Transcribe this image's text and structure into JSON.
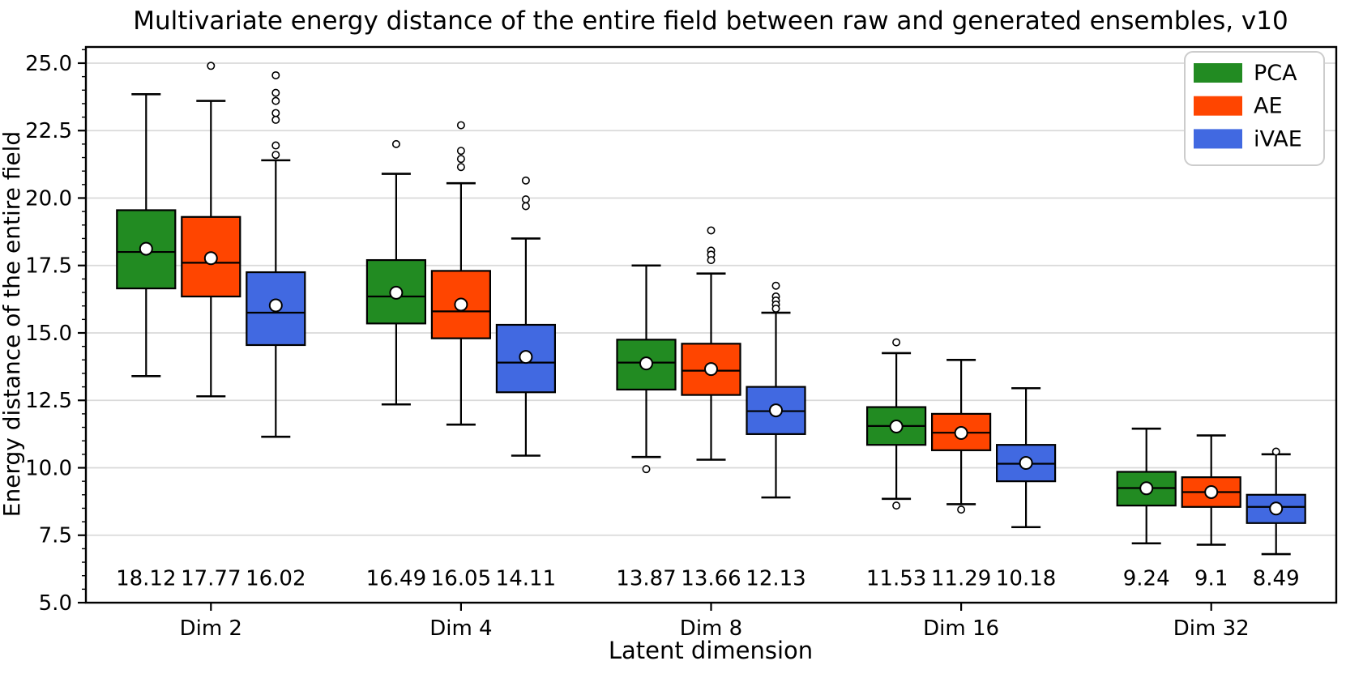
{
  "chart_data": {
    "type": "boxplot",
    "title": "Multivariate energy distance of the entire field between raw and generated ensembles, v10",
    "xlabel": "Latent dimension",
    "ylabel": "Energy distance of the entire field",
    "categories": [
      "Dim 2",
      "Dim 4",
      "Dim 8",
      "Dim 16",
      "Dim 32"
    ],
    "ylim": [
      5.0,
      25.6
    ],
    "yticks": [
      "5.0",
      "7.5",
      "10.0",
      "12.5",
      "15.0",
      "17.5",
      "20.0",
      "22.5",
      "25.0"
    ],
    "minor_tick_step": 0.5,
    "grid": "horizontal major gridlines, light gray",
    "legend": {
      "position": "upper right",
      "entries": [
        {
          "label": "PCA",
          "color": "#228B22"
        },
        {
          "label": "AE",
          "color": "#FF4500"
        },
        {
          "label": "iVAE",
          "color": "#4169E1"
        }
      ]
    },
    "mean_marker": "white circle with black edge",
    "series": [
      {
        "name": "PCA",
        "color": "#228B22",
        "boxes": [
          {
            "category": "Dim 2",
            "whislo": 13.4,
            "q1": 16.65,
            "med": 18.0,
            "q3": 19.55,
            "whishi": 23.85,
            "mean": 18.12,
            "mean_label": "18.12",
            "fliers": []
          },
          {
            "category": "Dim 4",
            "whislo": 12.35,
            "q1": 15.35,
            "med": 16.35,
            "q3": 17.7,
            "whishi": 20.9,
            "mean": 16.49,
            "mean_label": "16.49",
            "fliers": [
              22.0
            ]
          },
          {
            "category": "Dim 8",
            "whislo": 10.4,
            "q1": 12.9,
            "med": 13.9,
            "q3": 14.75,
            "whishi": 17.5,
            "mean": 13.87,
            "mean_label": "13.87",
            "fliers": [
              9.95
            ]
          },
          {
            "category": "Dim 16",
            "whislo": 8.85,
            "q1": 10.85,
            "med": 11.55,
            "q3": 12.25,
            "whishi": 14.25,
            "mean": 11.53,
            "mean_label": "11.53",
            "fliers": [
              14.65,
              8.6
            ]
          },
          {
            "category": "Dim 32",
            "whislo": 7.2,
            "q1": 8.6,
            "med": 9.25,
            "q3": 9.85,
            "whishi": 11.45,
            "mean": 9.24,
            "mean_label": "9.24",
            "fliers": []
          }
        ]
      },
      {
        "name": "AE",
        "color": "#FF4500",
        "boxes": [
          {
            "category": "Dim 2",
            "whislo": 12.65,
            "q1": 16.35,
            "med": 17.6,
            "q3": 19.3,
            "whishi": 23.6,
            "mean": 17.77,
            "mean_label": "17.77",
            "fliers": [
              24.9
            ]
          },
          {
            "category": "Dim 4",
            "whislo": 11.6,
            "q1": 14.8,
            "med": 15.8,
            "q3": 17.3,
            "whishi": 20.55,
            "mean": 16.05,
            "mean_label": "16.05",
            "fliers": [
              22.7,
              21.75,
              21.45,
              21.15
            ]
          },
          {
            "category": "Dim 8",
            "whislo": 10.3,
            "q1": 12.7,
            "med": 13.6,
            "q3": 14.6,
            "whishi": 17.2,
            "mean": 13.66,
            "mean_label": "13.66",
            "fliers": [
              18.8,
              18.05,
              17.9,
              17.7
            ]
          },
          {
            "category": "Dim 16",
            "whislo": 8.65,
            "q1": 10.65,
            "med": 11.3,
            "q3": 12.0,
            "whishi": 14.0,
            "mean": 11.29,
            "mean_label": "11.29",
            "fliers": [
              8.45
            ]
          },
          {
            "category": "Dim 32",
            "whislo": 7.15,
            "q1": 8.55,
            "med": 9.1,
            "q3": 9.65,
            "whishi": 11.2,
            "mean": 9.1,
            "mean_label": "9.1",
            "fliers": []
          }
        ]
      },
      {
        "name": "iVAE",
        "color": "#4169E1",
        "boxes": [
          {
            "category": "Dim 2",
            "whislo": 11.15,
            "q1": 14.55,
            "med": 15.75,
            "q3": 17.25,
            "whishi": 21.4,
            "mean": 16.02,
            "mean_label": "16.02",
            "fliers": [
              24.55,
              23.9,
              23.6,
              23.15,
              22.9,
              21.95,
              21.6
            ]
          },
          {
            "category": "Dim 4",
            "whislo": 10.45,
            "q1": 12.8,
            "med": 13.9,
            "q3": 15.3,
            "whishi": 18.5,
            "mean": 14.11,
            "mean_label": "14.11",
            "fliers": [
              20.65,
              19.95,
              19.7
            ]
          },
          {
            "category": "Dim 8",
            "whislo": 8.9,
            "q1": 11.25,
            "med": 12.1,
            "q3": 13.0,
            "whishi": 15.75,
            "mean": 12.13,
            "mean_label": "12.13",
            "fliers": [
              16.75,
              16.35,
              16.2,
              16.05,
              15.9
            ]
          },
          {
            "category": "Dim 16",
            "whislo": 7.8,
            "q1": 9.5,
            "med": 10.15,
            "q3": 10.85,
            "whishi": 12.95,
            "mean": 10.18,
            "mean_label": "10.18",
            "fliers": []
          },
          {
            "category": "Dim 32",
            "whislo": 6.8,
            "q1": 7.95,
            "med": 8.55,
            "q3": 9.0,
            "whishi": 10.5,
            "mean": 8.49,
            "mean_label": "8.49",
            "fliers": [
              10.6
            ]
          }
        ]
      }
    ],
    "mean_labels_row_value": 5.65
  }
}
